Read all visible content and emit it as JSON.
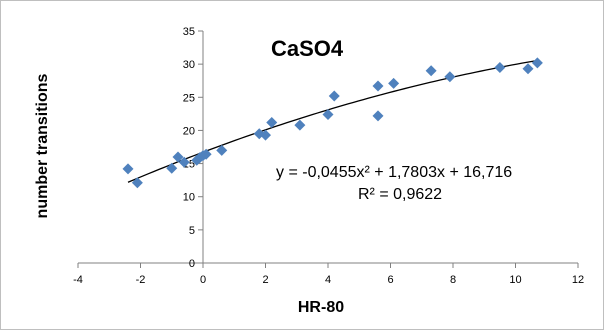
{
  "chart_data": {
    "type": "scatter",
    "title": "CaSO4",
    "xlabel": "HR-80",
    "ylabel": "number transitions",
    "xlim": [
      -4,
      12
    ],
    "ylim": [
      0,
      35
    ],
    "xticks": [
      -4,
      -2,
      0,
      2,
      4,
      6,
      8,
      10,
      12
    ],
    "yticks": [
      0,
      5,
      10,
      15,
      20,
      25,
      30,
      35
    ],
    "x_tick_labels": [
      "-4",
      "-2",
      "0",
      "2",
      "4",
      "6",
      "8",
      "10",
      "12"
    ],
    "y_tick_labels": [
      "0",
      "5",
      "10",
      "15",
      "20",
      "25",
      "30",
      "35"
    ],
    "grid": false,
    "marker_color": "#4f81bd",
    "trendline_color": "#000000",
    "series": [
      {
        "x": [
          -2.4,
          -2.1,
          -1.0,
          -0.8,
          -0.6,
          -0.2,
          -0.1,
          0.0,
          0.1,
          0.6,
          1.8,
          2.0,
          2.2,
          3.1,
          4.0,
          4.2,
          5.6,
          5.6,
          6.1,
          7.3,
          7.9,
          9.5,
          10.4,
          10.7
        ],
        "y": [
          14.2,
          12.1,
          14.3,
          16.0,
          15.2,
          15.5,
          15.9,
          16.2,
          16.4,
          17.0,
          19.5,
          19.3,
          21.2,
          20.8,
          22.4,
          25.2,
          22.2,
          26.7,
          27.1,
          29.0,
          28.1,
          29.5,
          29.3,
          30.2
        ]
      }
    ],
    "trendline": {
      "type": "polynomial",
      "coefficients": [
        -0.0455,
        1.7803,
        16.716
      ],
      "x_range": [
        -2.4,
        10.7
      ]
    },
    "annotations": {
      "equation": "y = -0,0455x² + 1,7803x + 16,716",
      "r_squared": "R² = 0,9622"
    }
  }
}
